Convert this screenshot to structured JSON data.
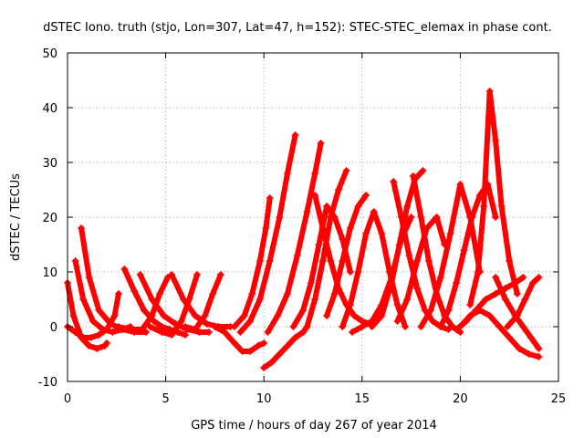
{
  "chart_data": {
    "type": "scatter",
    "title": "dSTEC Iono. truth (stjo, Lon=307, Lat=47, h=152): STEC-STEC_elemax in phase cont.",
    "xlabel": "GPS time / hours of day 267 of year 2014",
    "ylabel": "dSTEC  / TECUs",
    "xlim": [
      0,
      25
    ],
    "ylim": [
      -10,
      50
    ],
    "xticks": [
      0,
      5,
      10,
      15,
      20,
      25
    ],
    "yticks": [
      -10,
      0,
      10,
      20,
      30,
      40,
      50
    ],
    "grid": true,
    "marker": "+",
    "color": "#ff0000",
    "series": [
      {
        "x": [
          0.0,
          0.3,
          0.7,
          1.1,
          1.5,
          1.9,
          2.0
        ],
        "y": [
          8,
          2,
          -2,
          -3.5,
          -4,
          -3.5,
          -3
        ]
      },
      {
        "x": [
          0.0,
          0.4,
          0.8,
          1.2,
          1.6,
          2.0,
          2.4,
          2.6
        ],
        "y": [
          0,
          -1,
          -2,
          -2,
          -1.5,
          -0.5,
          2,
          6
        ]
      },
      {
        "x": [
          0.4,
          0.8,
          1.3,
          1.8,
          2.3,
          2.8,
          3.2
        ],
        "y": [
          12,
          5,
          1,
          -0.5,
          -1,
          -0.5,
          0
        ]
      },
      {
        "x": [
          0.7,
          1.1,
          1.6,
          2.2,
          2.8,
          3.4,
          4.0
        ],
        "y": [
          18,
          9,
          3,
          0.5,
          -0.5,
          -1,
          -1
        ]
      },
      {
        "x": [
          2.9,
          3.4,
          3.9,
          4.4,
          4.8,
          5.2,
          5.6,
          6.0
        ],
        "y": [
          10.5,
          6.5,
          3,
          1,
          0,
          -0.5,
          -1,
          -1.5
        ]
      },
      {
        "x": [
          2.6,
          3.2,
          3.8,
          4.3,
          4.7,
          5.1
        ],
        "y": [
          0,
          -0.5,
          -0.5,
          2,
          6,
          9
        ]
      },
      {
        "x": [
          3.7,
          4.3,
          4.9,
          5.5,
          6.1,
          6.7,
          7.2
        ],
        "y": [
          9.5,
          5,
          2,
          0.5,
          -0.5,
          -1,
          -1
        ]
      },
      {
        "x": [
          4.2,
          4.8,
          5.3,
          5.8,
          6.2,
          6.6
        ],
        "y": [
          0,
          -1,
          -1.5,
          1,
          5,
          9.5
        ]
      },
      {
        "x": [
          5.3,
          5.9,
          6.5,
          7.1,
          7.7,
          8.3
        ],
        "y": [
          9.5,
          5,
          2,
          0.5,
          0,
          0
        ]
      },
      {
        "x": [
          6.0,
          6.5,
          7.0,
          7.4,
          7.8
        ],
        "y": [
          0,
          -0.5,
          2,
          6,
          9.5
        ]
      },
      {
        "x": [
          7.5,
          8.0,
          8.5,
          8.9,
          9.3,
          9.7,
          10.0
        ],
        "y": [
          0,
          -1,
          -3,
          -4.5,
          -4.5,
          -3.5,
          -3
        ]
      },
      {
        "x": [
          8.5,
          9.0,
          9.4,
          9.8,
          10.1,
          10.3
        ],
        "y": [
          0,
          2,
          6,
          12,
          18,
          23.5
        ]
      },
      {
        "x": [
          8.8,
          9.3,
          9.8,
          10.3,
          10.8,
          11.2,
          11.6
        ],
        "y": [
          -1,
          1,
          5,
          12,
          20,
          28,
          35
        ]
      },
      {
        "x": [
          10.0,
          10.4,
          10.8,
          11.2,
          11.6,
          12.0,
          12.2
        ],
        "y": [
          -7.5,
          -6.5,
          -5,
          -3.5,
          -2,
          -1,
          0
        ]
      },
      {
        "x": [
          10.2,
          10.7,
          11.2,
          11.7,
          12.2,
          12.6,
          12.9
        ],
        "y": [
          -1,
          2,
          6,
          13,
          21,
          28,
          33.5
        ]
      },
      {
        "x": [
          11.5,
          12.0,
          12.4,
          12.8,
          13.2,
          13.6,
          14.0,
          14.4
        ],
        "y": [
          0,
          3,
          8,
          15,
          22,
          20,
          16,
          10
        ]
      },
      {
        "x": [
          12.2,
          12.6,
          13.0,
          13.4,
          13.8,
          14.2
        ],
        "y": [
          0,
          5,
          12,
          20,
          25,
          28.5
        ]
      },
      {
        "x": [
          12.6,
          13.0,
          13.4,
          13.8,
          14.2,
          14.6,
          15.0,
          15.4
        ],
        "y": [
          24,
          18,
          12,
          7,
          4,
          2,
          1,
          0.5
        ]
      },
      {
        "x": [
          13.2,
          13.6,
          14.0,
          14.4,
          14.8,
          15.2
        ],
        "y": [
          2,
          6,
          12,
          18,
          22,
          24
        ]
      },
      {
        "x": [
          14.0,
          14.4,
          14.8,
          15.2,
          15.6,
          16.0,
          16.4,
          16.8,
          17.2
        ],
        "y": [
          0,
          4,
          10,
          17,
          21,
          17,
          10,
          4,
          0
        ]
      },
      {
        "x": [
          14.5,
          15.0,
          15.5,
          16.0,
          16.5,
          17.0,
          17.5
        ],
        "y": [
          -1,
          0,
          1,
          4,
          9,
          16,
          20
        ]
      },
      {
        "x": [
          15.5,
          16.0,
          16.5,
          16.9,
          17.3,
          17.7,
          18.1
        ],
        "y": [
          0,
          2,
          8,
          15,
          22,
          27,
          28.5
        ]
      },
      {
        "x": [
          16.6,
          17.0,
          17.4,
          17.8,
          18.2,
          18.6,
          19.0,
          19.4
        ],
        "y": [
          26.5,
          20,
          13,
          7,
          3,
          1,
          0,
          -0.5
        ]
      },
      {
        "x": [
          16.8,
          17.3,
          17.8,
          18.3,
          18.8,
          19.2
        ],
        "y": [
          1,
          5,
          12,
          18,
          20,
          15
        ]
      },
      {
        "x": [
          17.6,
          18.0,
          18.4,
          18.8,
          19.2,
          19.6,
          20.0
        ],
        "y": [
          27.5,
          20,
          12,
          6,
          2,
          0,
          -1
        ]
      },
      {
        "x": [
          18.0,
          18.5,
          19.0,
          19.5,
          20.0,
          20.5,
          21.0
        ],
        "y": [
          0,
          3,
          9,
          17,
          26,
          20,
          10
        ]
      },
      {
        "x": [
          19.0,
          19.4,
          19.8,
          20.2,
          20.6,
          21.0,
          21.4,
          21.8
        ],
        "y": [
          0,
          3,
          8,
          14,
          20,
          24,
          26,
          20
        ]
      },
      {
        "x": [
          19.8,
          20.3,
          20.8,
          21.3,
          21.8,
          22.3,
          22.8,
          23.2
        ],
        "y": [
          -0.5,
          1,
          3,
          5,
          6,
          7,
          8,
          9
        ]
      },
      {
        "x": [
          20.5,
          20.9,
          21.2,
          21.5,
          21.8,
          22.1,
          22.5,
          22.9
        ],
        "y": [
          4,
          10,
          22,
          43,
          34,
          22,
          12,
          6
        ]
      },
      {
        "x": [
          20.0,
          20.5,
          21.0,
          21.5,
          22.0,
          22.5,
          23.0,
          23.5,
          24.0
        ],
        "y": [
          0,
          2,
          3,
          2,
          0,
          -2,
          -4,
          -5,
          -5.5
        ]
      },
      {
        "x": [
          21.8,
          22.3,
          22.8,
          23.2,
          23.6,
          24.0
        ],
        "y": [
          9,
          5,
          2,
          0,
          -2,
          -4
        ]
      },
      {
        "x": [
          22.4,
          22.9,
          23.3,
          23.7,
          24.0
        ],
        "y": [
          0,
          2,
          5,
          8,
          9
        ]
      }
    ]
  }
}
